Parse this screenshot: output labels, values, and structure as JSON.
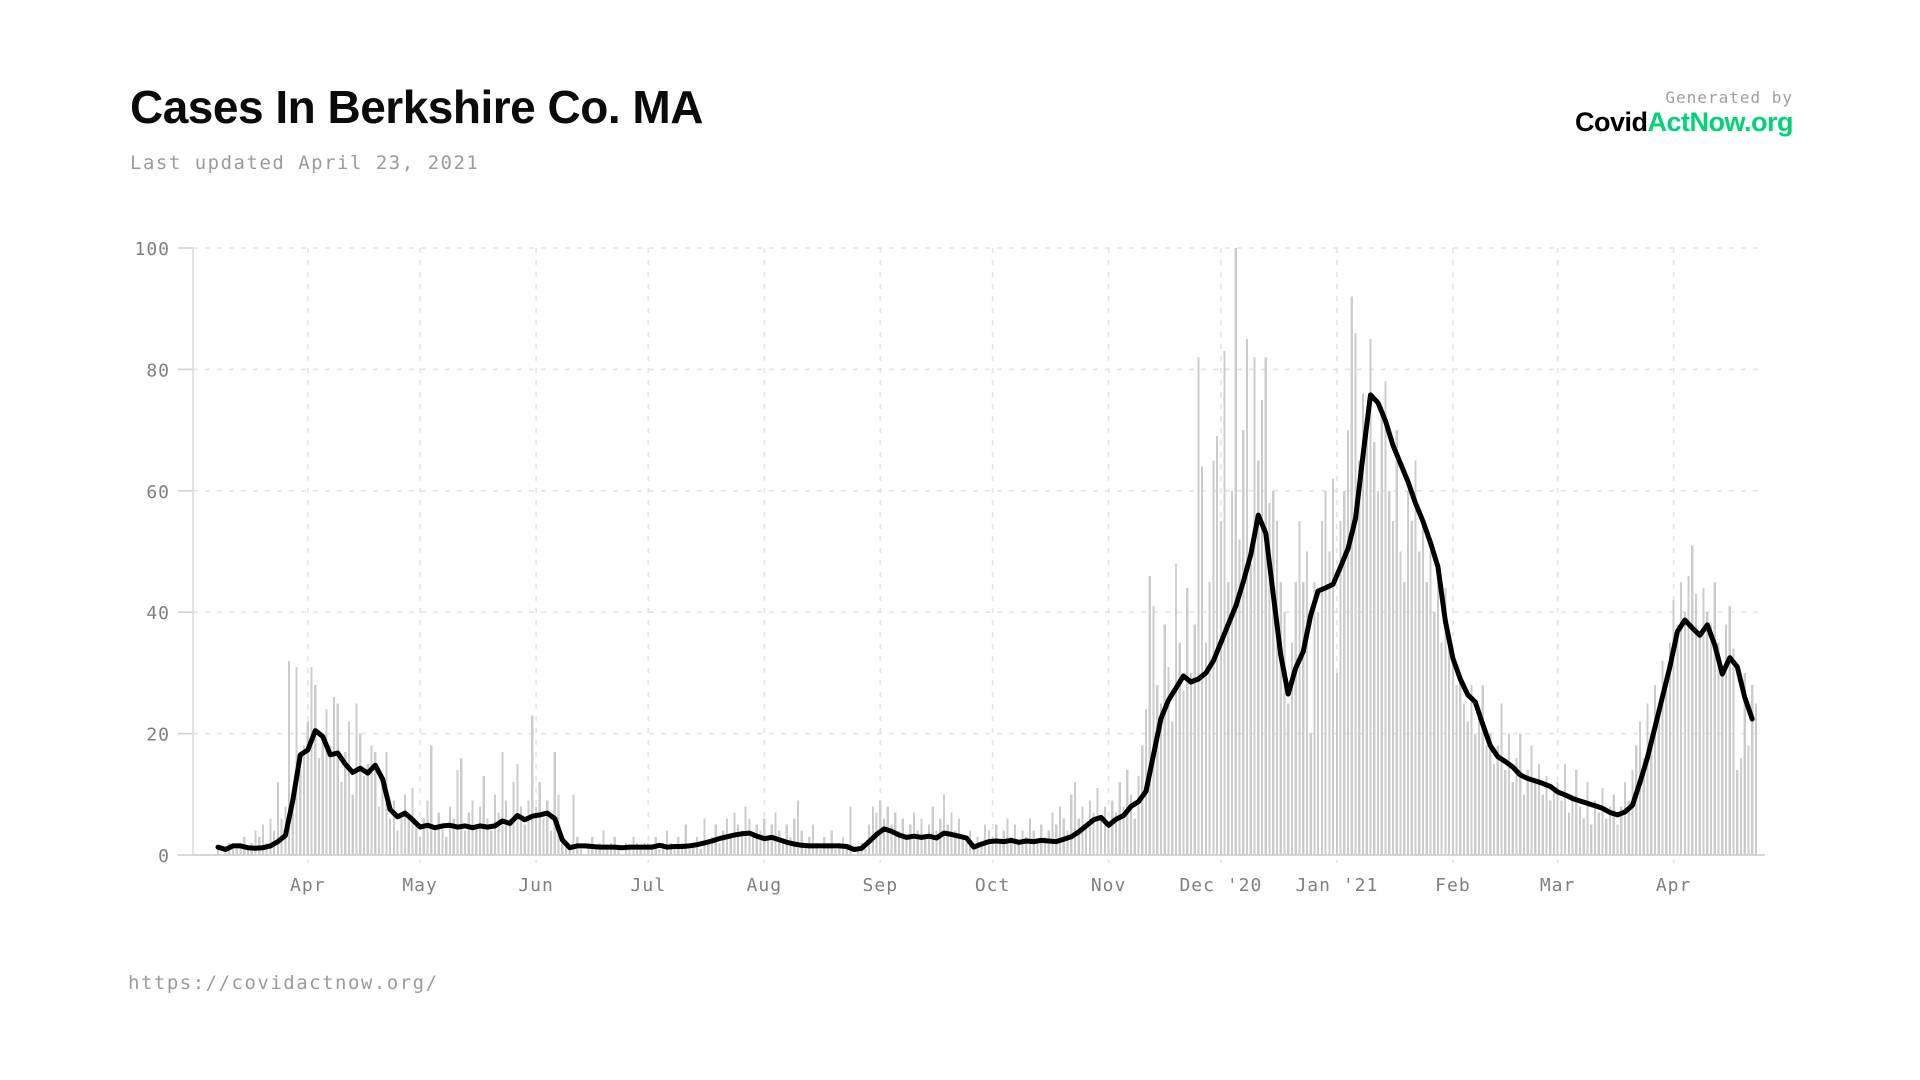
{
  "header": {
    "title": "Cases In Berkshire Co. MA",
    "subtitle": "Last updated April 23, 2021"
  },
  "branding": {
    "generated_by": "Generated by",
    "brand_black": "Covid",
    "brand_green": "ActNow.org",
    "brand_green_color": "#00d474"
  },
  "footer": {
    "url": "https://covidactnow.org/"
  },
  "chart_data": {
    "type": "bar",
    "description": "Daily new COVID cases (gray bars) with 7-day average trend line (black), Berkshire County MA, March 2020 - April 23 2021",
    "start_date": "2020-03-08",
    "ylim": [
      0,
      100
    ],
    "y_ticks": [
      0,
      20,
      40,
      60,
      80,
      100
    ],
    "x_tick_labels": [
      "Apr",
      "May",
      "Jun",
      "Jul",
      "Aug",
      "Sep",
      "Oct",
      "Nov",
      "Dec '20",
      "Jan '21",
      "Feb",
      "Mar",
      "Apr"
    ],
    "x_tick_day_offsets": [
      24,
      54,
      85,
      115,
      146,
      177,
      207,
      238,
      268,
      299,
      330,
      358,
      389
    ],
    "grid": "dashed",
    "legend": "none",
    "bars_name": "daily-new-cases",
    "bars_daily": [
      1,
      0,
      1,
      2,
      1,
      1,
      2,
      3,
      1,
      2,
      4,
      3,
      5,
      2,
      6,
      4,
      12,
      6,
      8,
      32,
      10,
      31,
      14,
      18,
      22,
      31,
      28,
      16,
      20,
      24,
      18,
      26,
      25,
      12,
      17,
      22,
      10,
      25,
      20,
      13,
      15,
      18,
      17,
      8,
      12,
      17,
      6,
      9,
      4,
      7,
      10,
      6,
      11,
      5,
      3,
      6,
      9,
      18,
      4,
      7,
      5,
      3,
      8,
      6,
      14,
      16,
      4,
      7,
      9,
      5,
      8,
      13,
      6,
      4,
      10,
      7,
      17,
      9,
      6,
      12,
      15,
      8,
      5,
      9,
      23,
      8,
      12,
      6,
      9,
      4,
      17,
      10,
      3,
      2,
      1,
      10,
      3,
      1,
      0,
      2,
      3,
      1,
      2,
      4,
      1,
      2,
      3,
      1,
      0,
      2,
      1,
      3,
      2,
      1,
      2,
      2,
      1,
      3,
      1,
      2,
      4,
      2,
      1,
      3,
      2,
      5,
      1,
      2,
      3,
      1,
      6,
      2,
      3,
      5,
      2,
      4,
      6,
      3,
      7,
      5,
      4,
      8,
      6,
      3,
      5,
      4,
      6,
      3,
      5,
      7,
      4,
      2,
      5,
      3,
      6,
      9,
      4,
      2,
      3,
      5,
      2,
      1,
      3,
      2,
      4,
      1,
      2,
      3,
      1,
      8,
      0,
      1,
      2,
      1,
      5,
      8,
      7,
      9,
      6,
      8,
      5,
      7,
      4,
      6,
      3,
      5,
      7,
      4,
      6,
      3,
      5,
      8,
      4,
      6,
      10,
      5,
      7,
      4,
      6,
      3,
      2,
      4,
      1,
      3,
      2,
      5,
      4,
      3,
      5,
      2,
      4,
      6,
      3,
      5,
      2,
      4,
      3,
      6,
      4,
      2,
      5,
      3,
      4,
      7,
      5,
      8,
      6,
      4,
      10,
      12,
      6,
      8,
      5,
      9,
      7,
      11,
      6,
      8,
      5,
      9,
      7,
      12,
      8,
      14,
      10,
      6,
      13,
      18,
      24,
      46,
      41,
      28,
      25,
      38,
      31,
      22,
      48,
      35,
      27,
      44,
      30,
      38,
      82,
      64,
      35,
      45,
      65,
      69,
      55,
      83,
      45,
      60,
      100,
      52,
      70,
      85,
      48,
      82,
      65,
      75,
      82,
      58,
      60,
      55,
      45,
      40,
      25,
      35,
      45,
      55,
      45,
      50,
      20,
      45,
      40,
      55,
      60,
      50,
      62,
      30,
      55,
      60,
      70,
      92,
      86,
      65,
      76,
      70,
      85,
      68,
      60,
      74,
      78,
      60,
      55,
      70,
      50,
      45,
      60,
      55,
      65,
      50,
      55,
      45,
      50,
      40,
      45,
      35,
      44,
      35,
      32,
      28,
      30,
      25,
      22,
      28,
      20,
      24,
      28,
      18,
      20,
      15,
      18,
      25,
      14,
      20,
      12,
      16,
      20,
      10,
      14,
      18,
      12,
      15,
      10,
      13,
      9,
      11,
      12,
      9,
      15,
      7,
      10,
      14,
      8,
      6,
      12,
      5,
      9,
      7,
      11,
      6,
      8,
      10,
      5,
      8,
      12,
      9,
      14,
      18,
      22,
      16,
      25,
      20,
      28,
      24,
      32,
      28,
      35,
      42,
      38,
      45,
      40,
      46,
      51,
      43,
      36,
      44,
      40,
      38,
      45,
      35,
      30,
      38,
      41,
      34,
      14,
      16,
      30,
      18,
      28,
      25
    ],
    "line_name": "seven-day-average",
    "line_step_days": 2,
    "line_values": [
      1.3,
      0.9,
      1.5,
      1.5,
      1.2,
      1.1,
      1.2,
      1.5,
      2.2,
      3.2,
      9,
      16.5,
      17.3,
      20.5,
      19.5,
      16.5,
      16.8,
      15,
      13.6,
      14.3,
      13.5,
      14.8,
      12.5,
      7.5,
      6.3,
      6.9,
      5.8,
      4.6,
      4.9,
      4.5,
      4.8,
      4.9,
      4.6,
      4.8,
      4.5,
      4.8,
      4.6,
      4.8,
      5.6,
      5.2,
      6.5,
      5.8,
      6.4,
      6.6,
      6.9,
      6,
      2.5,
      1.2,
      1.5,
      1.5,
      1.4,
      1.3,
      1.3,
      1.3,
      1.2,
      1.3,
      1.3,
      1.3,
      1.3,
      1.6,
      1.3,
      1.4,
      1.4,
      1.5,
      1.7,
      2,
      2.3,
      2.7,
      3,
      3.3,
      3.5,
      3.6,
      3.1,
      2.7,
      2.9,
      2.5,
      2.1,
      1.8,
      1.6,
      1.5,
      1.5,
      1.5,
      1.5,
      1.5,
      1.4,
      0.9,
      1.1,
      2.2,
      3.4,
      4.3,
      3.9,
      3.3,
      2.9,
      3.1,
      2.9,
      3.1,
      2.8,
      3.6,
      3.4,
      3.1,
      2.8,
      1.3,
      1.8,
      2.2,
      2.3,
      2.2,
      2.4,
      2.1,
      2.3,
      2.2,
      2.4,
      2.3,
      2.2,
      2.6,
      3,
      3.8,
      4.8,
      5.8,
      6.2,
      4.9,
      5.9,
      6.5,
      8,
      8.8,
      10.5,
      16.5,
      22.5,
      25.5,
      27.5,
      29.5,
      28.5,
      29,
      30,
      32,
      35,
      38,
      41,
      45,
      49.5,
      56,
      53,
      43,
      33,
      26.5,
      30.8,
      33.5,
      39.5,
      43.5,
      44,
      44.6,
      47.5,
      50.5,
      55.5,
      66,
      75.8,
      74.5,
      71.5,
      67.5,
      64.5,
      61.5,
      58,
      55,
      51.5,
      47.5,
      38.5,
      32.4,
      29,
      26.4,
      25.2,
      21.5,
      18,
      16.2,
      15.4,
      14.5,
      13.2,
      12.6,
      12.2,
      11.8,
      11.3,
      10.4,
      9.9,
      9.3,
      8.9,
      8.5,
      8.1,
      7.7,
      7,
      6.6,
      7.1,
      8.2,
      12,
      16,
      21,
      26,
      31,
      36.8,
      38.7,
      37.4,
      36.2,
      37.9,
      34.6,
      29.8,
      32.5,
      31,
      26,
      22.4
    ],
    "colors": {
      "bar": "#cccccc",
      "line": "#000000",
      "grid": "#e3e3e3",
      "axis": "#c9c9c9",
      "tick_label": "#7f7f7f"
    }
  }
}
